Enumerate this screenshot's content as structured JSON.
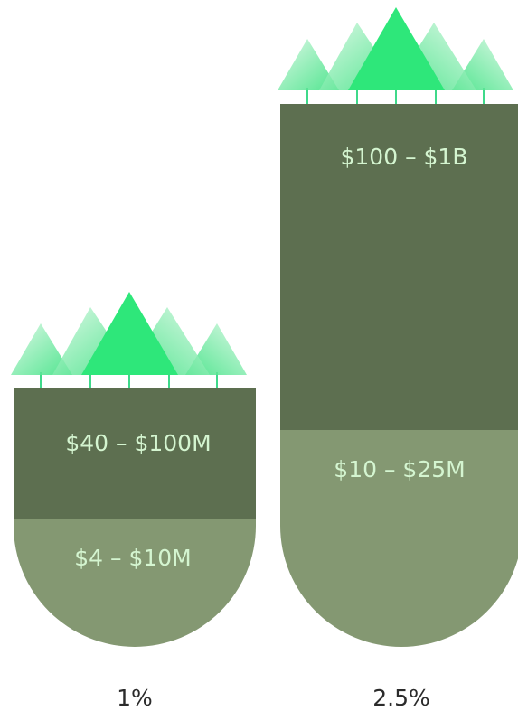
{
  "columns": [
    {
      "top_label": "$40 – $100M",
      "bottom_label": "$4 – $10M",
      "caption": "1%"
    },
    {
      "top_label": "$100 – $1B",
      "bottom_label": "$10 – $25M",
      "caption": "2.5%"
    }
  ]
}
